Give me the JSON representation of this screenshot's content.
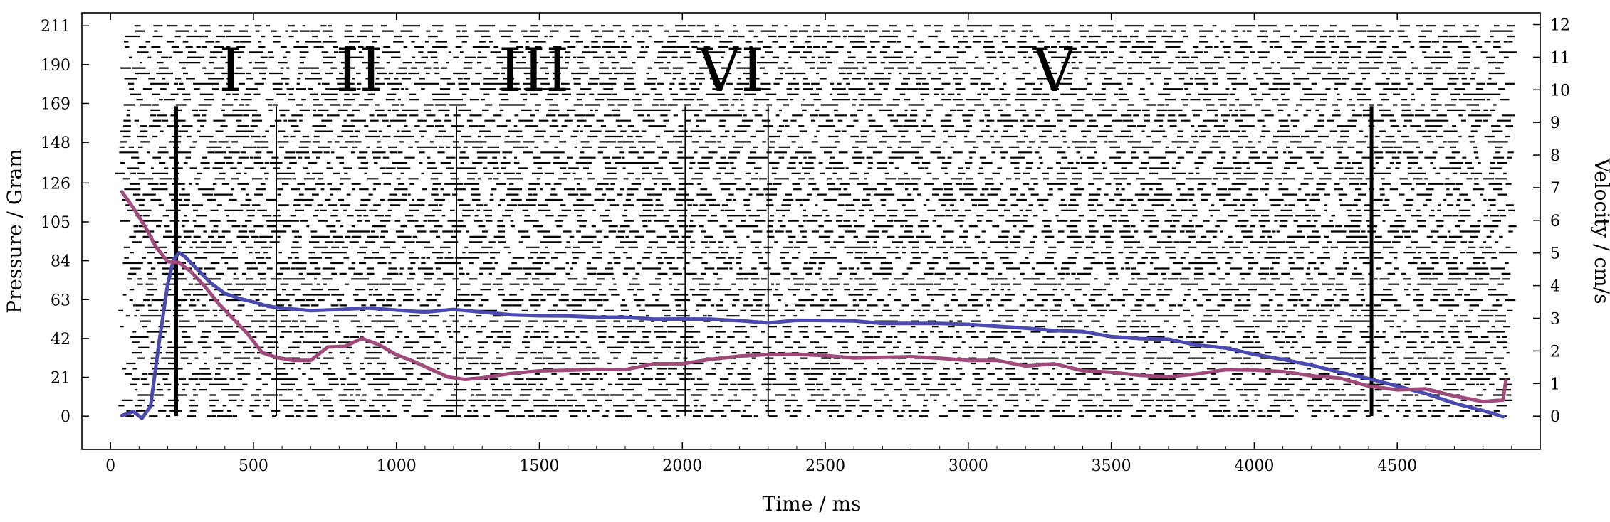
{
  "chart_data": {
    "type": "scatter",
    "title": "",
    "xlabel": "Time / ms",
    "ylabel_left": "Pressure / Gram",
    "ylabel_right": "Velocity / cm/s",
    "xlim": [
      -100,
      5000
    ],
    "ylim_left": [
      -18,
      218
    ],
    "ylim_right": [
      -1.02,
      12.36
    ],
    "x_ticks": [
      0,
      500,
      1000,
      1500,
      2000,
      2500,
      3000,
      3500,
      4000,
      4500
    ],
    "y_left_ticks": [
      0,
      21,
      42,
      63,
      84,
      105,
      126,
      148,
      169,
      190,
      211
    ],
    "y_right_ticks": [
      0,
      1,
      2,
      3,
      4,
      5,
      6,
      7,
      8,
      9,
      10,
      11,
      12
    ],
    "grid": false,
    "phase_labels": [
      {
        "label": "I",
        "x": 420
      },
      {
        "label": "II",
        "x": 870
      },
      {
        "label": "III",
        "x": 1480
      },
      {
        "label": "VI",
        "x": 2170
      },
      {
        "label": "V",
        "x": 3300
      }
    ],
    "boundaries": [
      {
        "x": 230,
        "style": "thick"
      },
      {
        "x": 580,
        "style": "thin"
      },
      {
        "x": 1210,
        "style": "thin"
      },
      {
        "x": 2010,
        "style": "thin"
      },
      {
        "x": 2300,
        "style": "thin"
      },
      {
        "x": 4410,
        "style": "thick"
      }
    ],
    "raster": {
      "description_channels_pressure_range": [
        0,
        211
      ],
      "channel_count": 75,
      "x_range": [
        0,
        4890
      ],
      "color": "#000000"
    },
    "series": [
      {
        "axis": "left",
        "color": "#4a4ab0",
        "x": [
          40,
          80,
          110,
          140,
          170,
          200,
          220,
          240,
          260,
          300,
          350,
          400,
          450,
          500,
          550,
          600,
          700,
          800,
          900,
          1000,
          1100,
          1200,
          1300,
          1400,
          1500,
          1600,
          1700,
          1800,
          1900,
          2000,
          2100,
          2200,
          2300,
          2400,
          2500,
          2600,
          2700,
          2800,
          2900,
          3000,
          3100,
          3200,
          3300,
          3400,
          3500,
          3600,
          3700,
          3800,
          3900,
          4000,
          4100,
          4200,
          4300,
          4400,
          4500,
          4600,
          4700,
          4800,
          4870
        ],
        "values": [
          0,
          2,
          -1,
          5,
          40,
          72,
          84,
          88,
          86,
          80,
          72,
          67,
          63,
          61,
          60,
          58,
          57,
          57,
          58,
          57,
          57,
          57,
          56,
          55,
          55,
          54,
          53,
          53,
          53,
          52,
          52,
          51,
          51,
          52,
          51,
          51,
          50,
          50,
          50,
          49,
          48,
          47,
          46,
          45,
          43,
          42,
          41,
          39,
          37,
          34,
          30,
          27,
          23,
          20,
          16,
          12,
          7,
          3,
          0
        ]
      },
      {
        "axis": "left",
        "color": "#a04a7c",
        "x": [
          40,
          80,
          120,
          160,
          200,
          240,
          280,
          330,
          380,
          430,
          480,
          530,
          580,
          640,
          700,
          760,
          820,
          880,
          940,
          1000,
          1060,
          1120,
          1180,
          1240,
          1300,
          1400,
          1500,
          1600,
          1700,
          1800,
          1900,
          2000,
          2100,
          2200,
          2300,
          2400,
          2500,
          2600,
          2700,
          2800,
          2900,
          3000,
          3100,
          3200,
          3300,
          3400,
          3500,
          3600,
          3700,
          3800,
          3900,
          4000,
          4100,
          4200,
          4300,
          4400,
          4500,
          4600,
          4700,
          4800,
          4870,
          4880
        ],
        "values": [
          121,
          113,
          103,
          92,
          84,
          83,
          78,
          70,
          60,
          52,
          44,
          36,
          31,
          30,
          32,
          36,
          39,
          41,
          38,
          33,
          28,
          25,
          23,
          21,
          21,
          22,
          23,
          24,
          25,
          27,
          29,
          30,
          31,
          31,
          32,
          32,
          33,
          33,
          33,
          33,
          32,
          31,
          30,
          29,
          27,
          25,
          23,
          22,
          22,
          23,
          24,
          24,
          23,
          22,
          20,
          17,
          15,
          13,
          11,
          9,
          10,
          21
        ]
      }
    ]
  }
}
